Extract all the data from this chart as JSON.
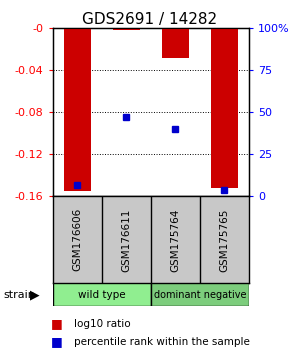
{
  "title": "GDS2691 / 14282",
  "samples": [
    "GSM176606",
    "GSM176611",
    "GSM175764",
    "GSM175765"
  ],
  "log10_ratio": [
    -0.155,
    -0.002,
    -0.028,
    -0.152
  ],
  "percentile_rank": [
    0.07,
    0.47,
    0.4,
    0.04
  ],
  "y_min": -0.16,
  "y_max": 0.0,
  "y_ticks": [
    -0.16,
    -0.12,
    -0.08,
    -0.04,
    0.0
  ],
  "y_tick_labels": [
    "-0.16",
    "-0.12",
    "-0.08",
    "-0.04",
    "-0"
  ],
  "right_y_ticks": [
    0,
    25,
    50,
    75,
    100
  ],
  "right_y_labels": [
    "0",
    "25",
    "50",
    "75",
    "100%"
  ],
  "bar_color": "#CC0000",
  "square_color": "#0000CC",
  "label_box_color": "#C8C8C8",
  "wt_color": "#90EE90",
  "dn_color": "#7CCD7C"
}
